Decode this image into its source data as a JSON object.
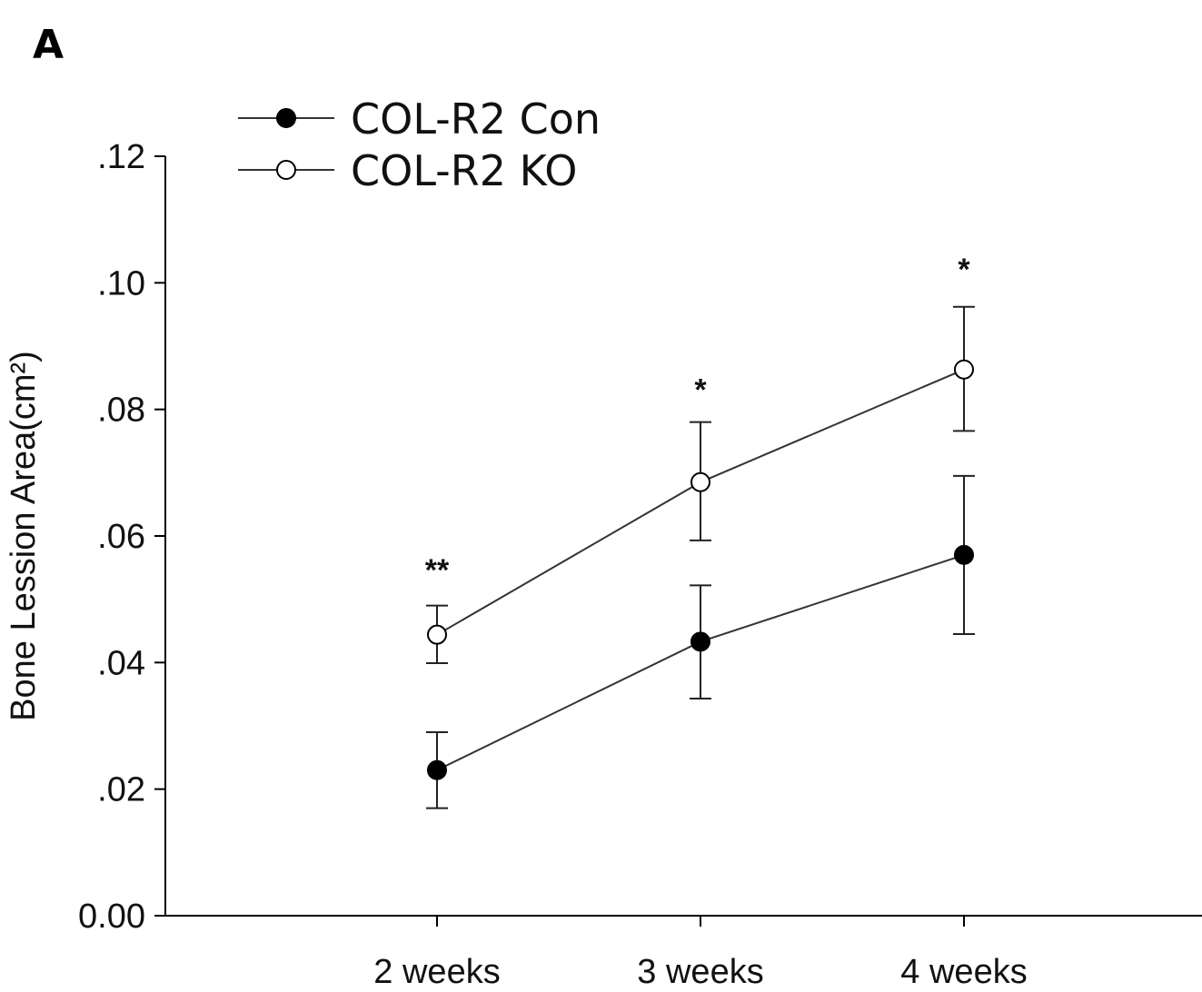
{
  "panel_label": "A",
  "chart_data": {
    "type": "line",
    "title": "",
    "xlabel": "",
    "ylabel": "Bone Lession Area(cm²)",
    "categories": [
      "2 weeks",
      "3 weeks",
      "4 weeks"
    ],
    "ylim": [
      0,
      0.12
    ],
    "yticks": [
      0.0,
      0.02,
      0.04,
      0.06,
      0.08,
      0.1,
      0.12
    ],
    "ytick_labels": [
      "0.00",
      ".02",
      ".04",
      ".06",
      ".08",
      ".10",
      ".12"
    ],
    "grid": false,
    "legend_position": "top-left",
    "series": [
      {
        "name": "COL-R2 Con",
        "marker": "filled-circle",
        "color": "#000000",
        "values": [
          0.023,
          0.0433,
          0.057
        ],
        "error_upper": [
          0.029,
          0.0522,
          0.0695
        ],
        "error_lower": [
          0.017,
          0.0343,
          0.0445
        ]
      },
      {
        "name": "COL-R2 KO",
        "marker": "open-circle",
        "color": "#000000",
        "values": [
          0.0444,
          0.0685,
          0.0863
        ],
        "error_upper": [
          0.049,
          0.078,
          0.0962
        ],
        "error_lower": [
          0.0399,
          0.0593,
          0.0766
        ]
      }
    ],
    "annotations": [
      {
        "category": "2 weeks",
        "text": "**",
        "y": 0.055
      },
      {
        "category": "3 weeks",
        "text": "*",
        "y": 0.0835
      },
      {
        "category": "4 weeks",
        "text": "*",
        "y": 0.1025
      }
    ]
  }
}
